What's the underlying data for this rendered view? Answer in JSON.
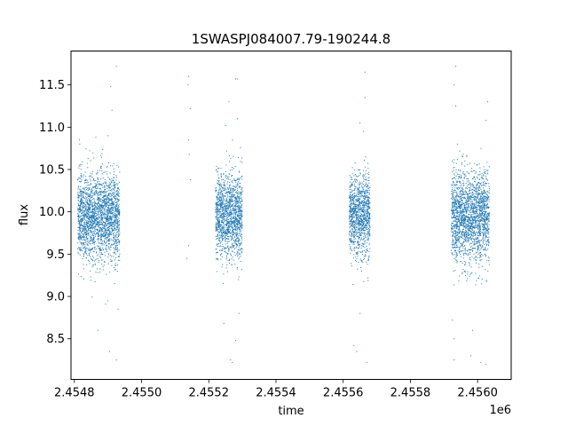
{
  "chart_data": {
    "type": "scatter",
    "title": "1SWASPJ084007.79-190244.8",
    "xlabel": "time",
    "ylabel": "flux",
    "x_offset_label": "1e6",
    "xlim": [
      2454790,
      2456100
    ],
    "ylim": [
      8.02,
      11.9
    ],
    "x_ticks": [
      2454800,
      2455000,
      2455200,
      2455400,
      2455600,
      2455800,
      2456000
    ],
    "x_tick_labels": [
      "2.4548",
      "2.4550",
      "2.4552",
      "2.4554",
      "2.4556",
      "2.4558",
      "2.4560"
    ],
    "y_ticks": [
      8.5,
      9.0,
      9.5,
      10.0,
      10.5,
      11.0,
      11.5
    ],
    "y_tick_labels": [
      "8.5",
      "9.0",
      "9.5",
      "10.0",
      "10.5",
      "11.0",
      "11.5"
    ],
    "marker_color": "#1f77b4",
    "grid": false,
    "legend": "none",
    "observing_seasons": [
      {
        "x_start": 2454810,
        "x_end": 2454935,
        "y_center": 9.95,
        "spread": 0.4
      },
      {
        "x_start": 2455220,
        "x_end": 2455300,
        "y_center": 9.95,
        "spread": 0.4
      },
      {
        "x_start": 2455618,
        "x_end": 2455680,
        "y_center": 9.95,
        "spread": 0.38
      },
      {
        "x_start": 2455922,
        "x_end": 2456035,
        "y_center": 9.95,
        "spread": 0.42
      }
    ],
    "outliers": [
      {
        "x": 2454925,
        "y": 11.72
      },
      {
        "x": 2454908,
        "y": 11.48
      },
      {
        "x": 2454912,
        "y": 11.2
      },
      {
        "x": 2454900,
        "y": 10.9
      },
      {
        "x": 2454925,
        "y": 8.25
      },
      {
        "x": 2454905,
        "y": 8.35
      },
      {
        "x": 2454870,
        "y": 8.6
      },
      {
        "x": 2454930,
        "y": 8.85
      },
      {
        "x": 2454815,
        "y": 10.85
      },
      {
        "x": 2455140,
        "y": 11.6
      },
      {
        "x": 2455138,
        "y": 11.5
      },
      {
        "x": 2455145,
        "y": 11.22
      },
      {
        "x": 2455140,
        "y": 10.85
      },
      {
        "x": 2455142,
        "y": 10.68
      },
      {
        "x": 2455145,
        "y": 10.38
      },
      {
        "x": 2455140,
        "y": 9.6
      },
      {
        "x": 2455135,
        "y": 9.45
      },
      {
        "x": 2455280,
        "y": 11.57
      },
      {
        "x": 2455285,
        "y": 11.57
      },
      {
        "x": 2455260,
        "y": 11.3
      },
      {
        "x": 2455285,
        "y": 11.1
      },
      {
        "x": 2455250,
        "y": 11.02
      },
      {
        "x": 2455280,
        "y": 8.48
      },
      {
        "x": 2455265,
        "y": 8.25
      },
      {
        "x": 2455270,
        "y": 8.22
      },
      {
        "x": 2455245,
        "y": 8.68
      },
      {
        "x": 2455290,
        "y": 8.8
      },
      {
        "x": 2455665,
        "y": 11.65
      },
      {
        "x": 2455665,
        "y": 11.35
      },
      {
        "x": 2455650,
        "y": 11.05
      },
      {
        "x": 2455660,
        "y": 10.95
      },
      {
        "x": 2455640,
        "y": 8.35
      },
      {
        "x": 2455670,
        "y": 8.22
      },
      {
        "x": 2455650,
        "y": 8.8
      },
      {
        "x": 2455632,
        "y": 8.42
      },
      {
        "x": 2455935,
        "y": 11.72
      },
      {
        "x": 2455930,
        "y": 11.5
      },
      {
        "x": 2455935,
        "y": 11.25
      },
      {
        "x": 2455940,
        "y": 10.8
      },
      {
        "x": 2456030,
        "y": 11.3
      },
      {
        "x": 2456025,
        "y": 11.08
      },
      {
        "x": 2456010,
        "y": 10.75
      },
      {
        "x": 2455930,
        "y": 8.5
      },
      {
        "x": 2455930,
        "y": 8.25
      },
      {
        "x": 2455980,
        "y": 8.3
      },
      {
        "x": 2456010,
        "y": 8.22
      },
      {
        "x": 2456025,
        "y": 8.2
      },
      {
        "x": 2455985,
        "y": 8.6
      },
      {
        "x": 2455925,
        "y": 8.72
      }
    ]
  }
}
